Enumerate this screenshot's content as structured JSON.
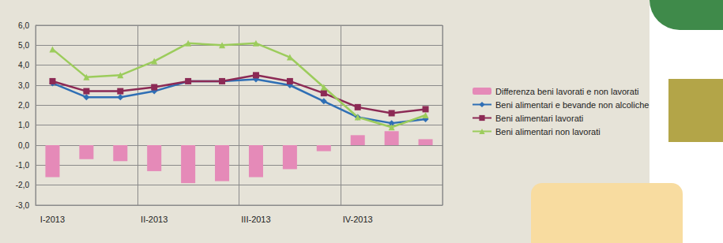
{
  "chart_data": {
    "type": "line",
    "categories": [
      "I-2013",
      null,
      null,
      "II-2013",
      null,
      null,
      "III-2013",
      null,
      null,
      "IV-2013",
      null,
      null
    ],
    "series": [
      {
        "name": "Differenza beni lavorati e non lavorati",
        "type": "bar",
        "color": "#e58ab8",
        "values": [
          -1.6,
          -0.7,
          -0.8,
          -1.3,
          -1.9,
          -1.8,
          -1.6,
          -1.2,
          -0.3,
          0.5,
          0.7,
          0.3
        ]
      },
      {
        "name": "Beni alimentari e bevande non alcoliche",
        "type": "line",
        "color": "#2f6fb5",
        "marker": "diamond",
        "values": [
          3.1,
          2.4,
          2.4,
          2.7,
          3.2,
          3.2,
          3.3,
          3.0,
          2.2,
          1.4,
          1.1,
          1.3
        ]
      },
      {
        "name": "Beni alimentari lavorati",
        "type": "line",
        "color": "#8c2a55",
        "marker": "square",
        "values": [
          3.2,
          2.7,
          2.7,
          2.9,
          3.2,
          3.2,
          3.5,
          3.2,
          2.6,
          1.9,
          1.6,
          1.8
        ]
      },
      {
        "name": "Beni alimentari non lavorati",
        "type": "line",
        "color": "#9ccc5c",
        "marker": "triangle",
        "values": [
          4.8,
          3.4,
          3.5,
          4.2,
          5.1,
          5.0,
          5.1,
          4.4,
          2.9,
          1.4,
          0.9,
          1.5
        ]
      }
    ],
    "ylim": [
      -3,
      6
    ],
    "yticks": [
      {
        "value": -3,
        "label": "-3,0"
      },
      {
        "value": -2,
        "label": "-2,0"
      },
      {
        "value": -1,
        "label": "-1,0"
      },
      {
        "value": 0,
        "label": "0,0"
      },
      {
        "value": 1,
        "label": "1,0"
      },
      {
        "value": 2,
        "label": "2,0"
      },
      {
        "value": 3,
        "label": "3,0"
      },
      {
        "value": 4,
        "label": "4,0"
      },
      {
        "value": 5,
        "label": "5,0"
      },
      {
        "value": 6,
        "label": "6,0"
      }
    ],
    "grid": true,
    "legend": "right"
  }
}
